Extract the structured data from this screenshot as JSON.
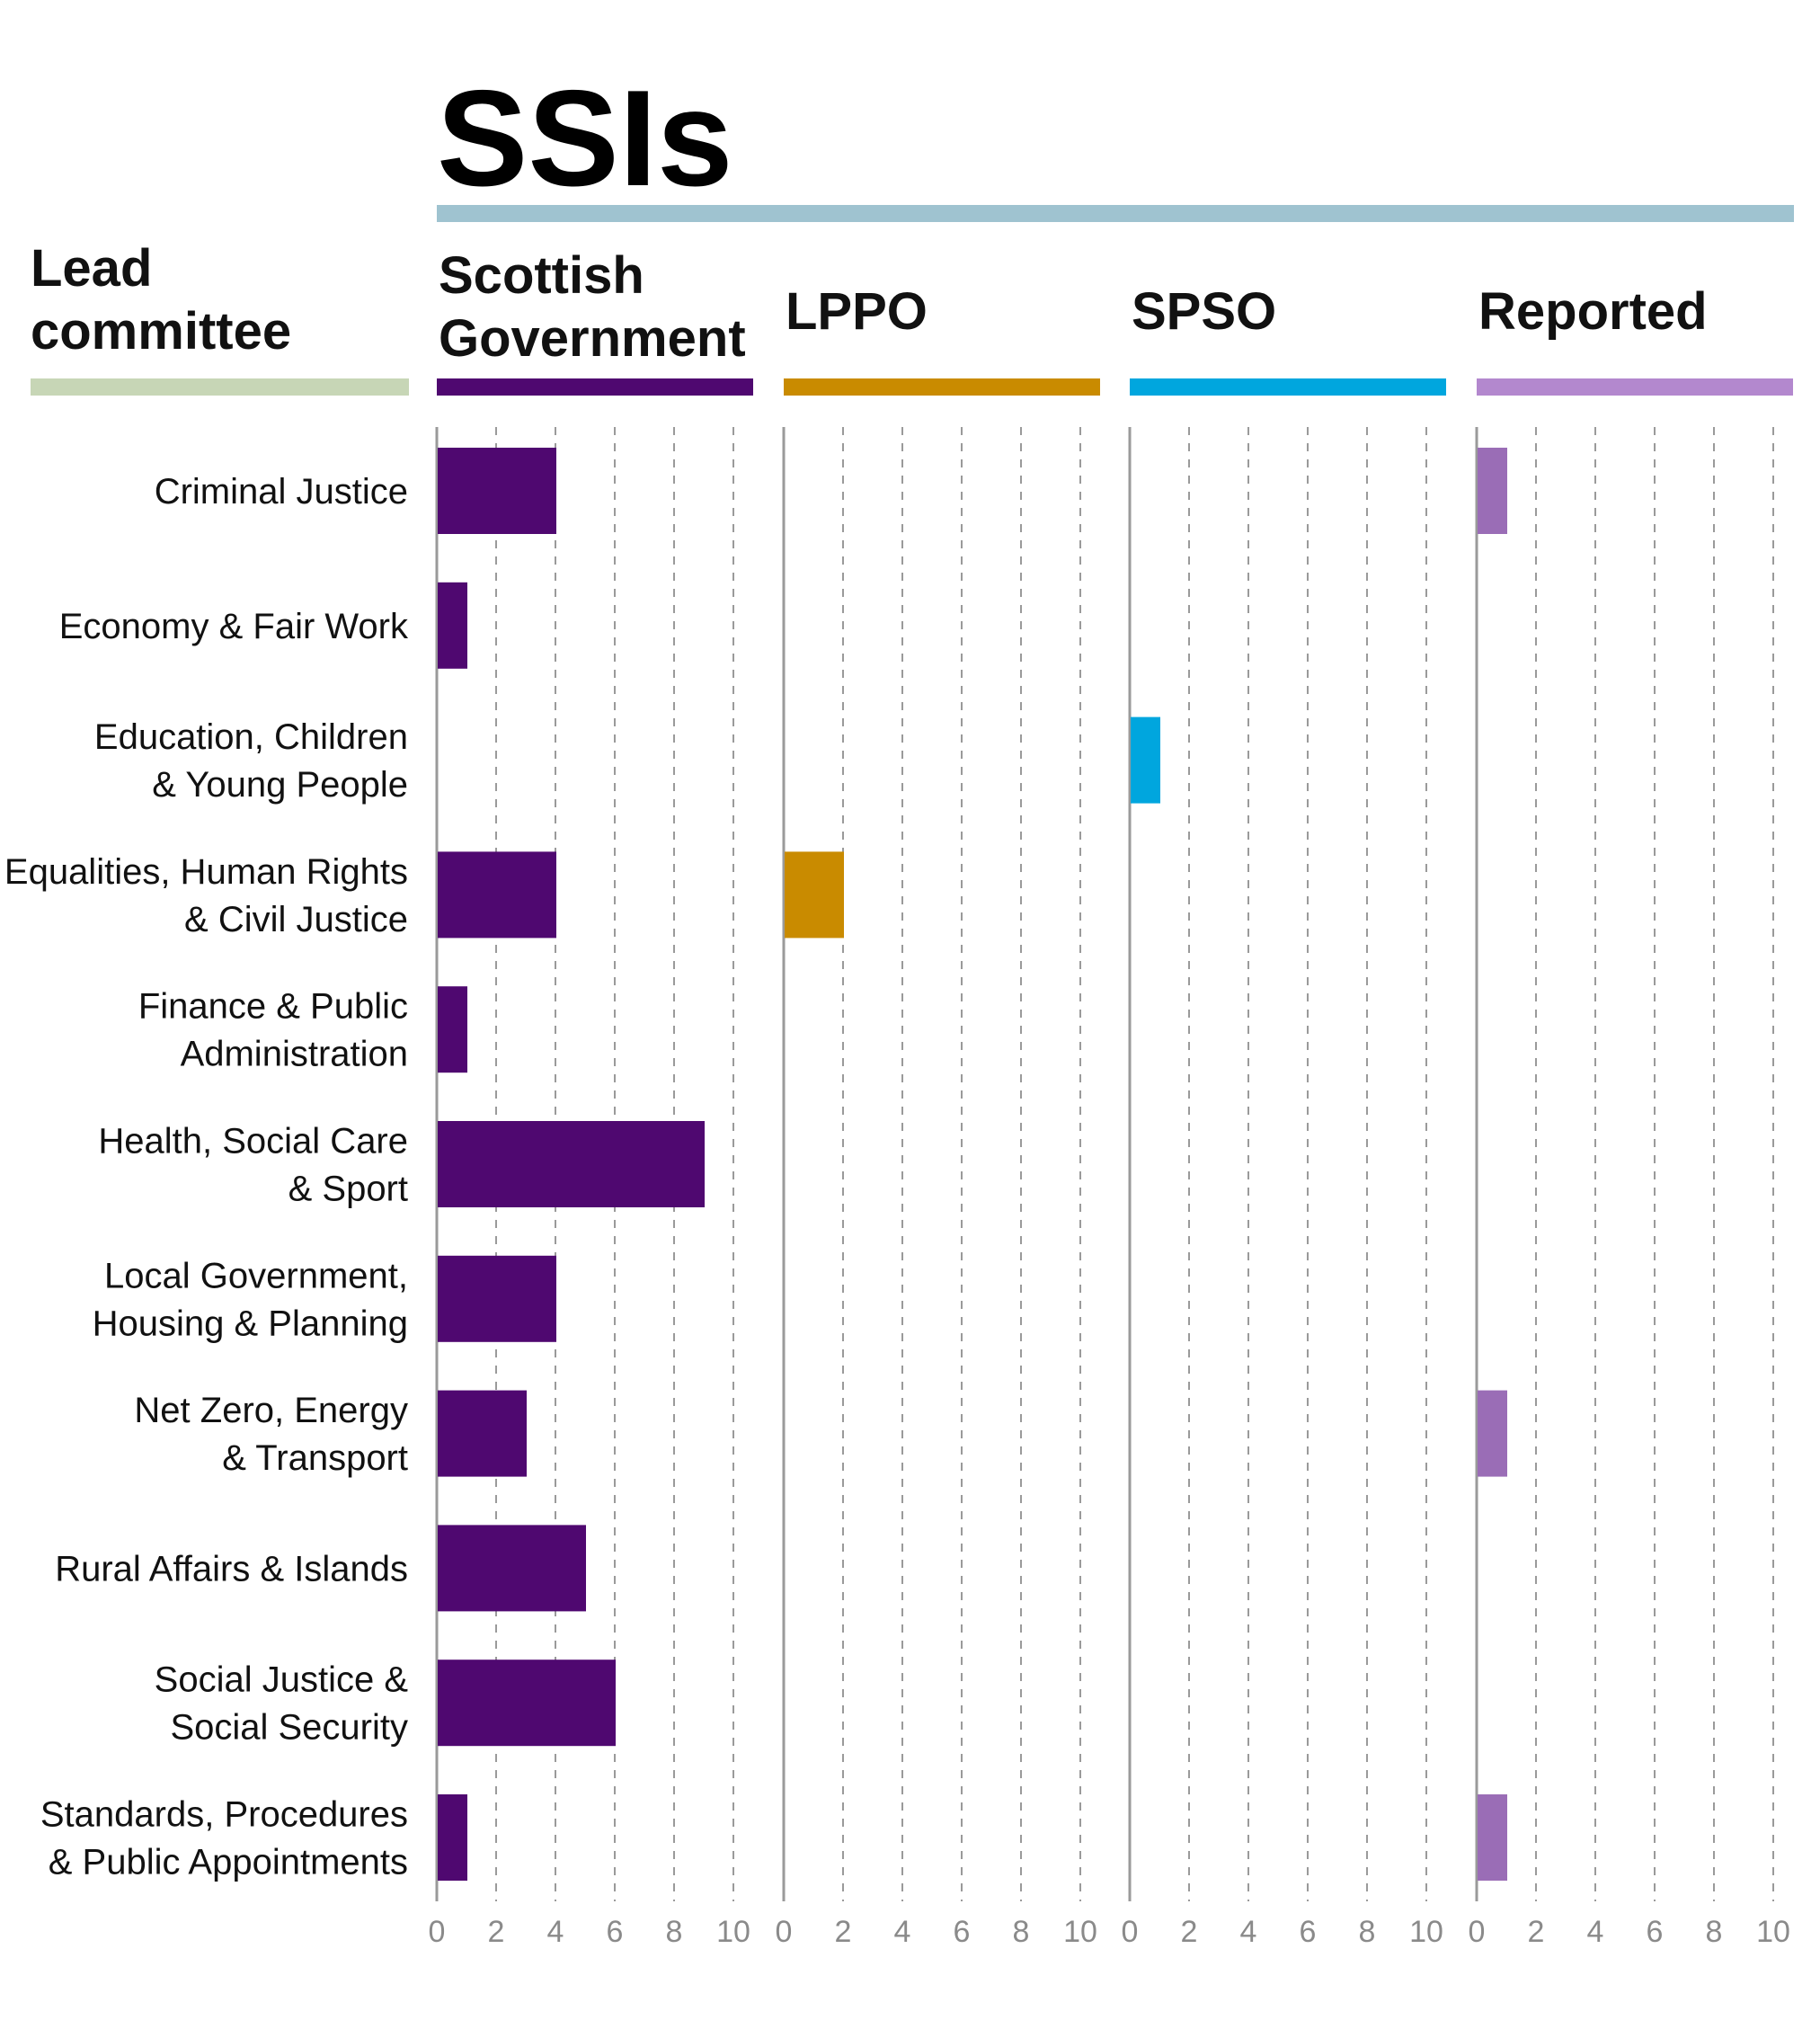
{
  "chart_data": {
    "type": "bar",
    "orientation": "horizontal",
    "title": "SSIs",
    "category_header": [
      "Lead",
      "committee"
    ],
    "categories": [
      [
        "Criminal Justice"
      ],
      [
        "Economy & Fair Work"
      ],
      [
        "Education, Children",
        "& Young People"
      ],
      [
        "Equalities, Human Rights",
        "& Civil Justice"
      ],
      [
        "Finance & Public",
        "Administration"
      ],
      [
        "Health, Social Care",
        "& Sport"
      ],
      [
        "Local Government,",
        "Housing & Planning"
      ],
      [
        "Net Zero, Energy",
        "& Transport"
      ],
      [
        "Rural Affairs & Islands"
      ],
      [
        "Social Justice &",
        "Social Security"
      ],
      [
        "Standards, Procedures",
        "& Public Appointments"
      ]
    ],
    "panels": [
      {
        "name": "Scottish Government",
        "header_lines": [
          "Scottish",
          "Government"
        ],
        "color": "#4f0870",
        "header_color": "#4f0870",
        "values": [
          4,
          1,
          0,
          4,
          1,
          9,
          4,
          3,
          5,
          6,
          1
        ]
      },
      {
        "name": "LPPO",
        "header_lines": [
          "LPPO"
        ],
        "color": "#c98b00",
        "header_color": "#c98b00",
        "values": [
          0,
          0,
          0,
          2,
          0,
          0,
          0,
          0,
          0,
          0,
          0
        ]
      },
      {
        "name": "SPSO",
        "header_lines": [
          "SPSO"
        ],
        "color": "#00a6de",
        "header_color": "#00a6de",
        "values": [
          0,
          0,
          1,
          0,
          0,
          0,
          0,
          0,
          0,
          0,
          0
        ]
      },
      {
        "name": "Reported",
        "header_lines": [
          "Reported"
        ],
        "color": "#9a6db6",
        "header_color": "#b388ce",
        "values": [
          1,
          0,
          0,
          0,
          0,
          0,
          0,
          1,
          0,
          0,
          1
        ]
      }
    ],
    "xlim": [
      0,
      10
    ],
    "xticks": [
      0,
      2,
      4,
      6,
      8,
      10
    ],
    "grid": "dashed vertical",
    "colors": {
      "title_rule": "#9fc3d0",
      "committee_rule": "#c7d6b6",
      "axis": "#9a9a9a",
      "grid": "#9a9a9a",
      "tick_label": "#8a8a8a"
    }
  }
}
